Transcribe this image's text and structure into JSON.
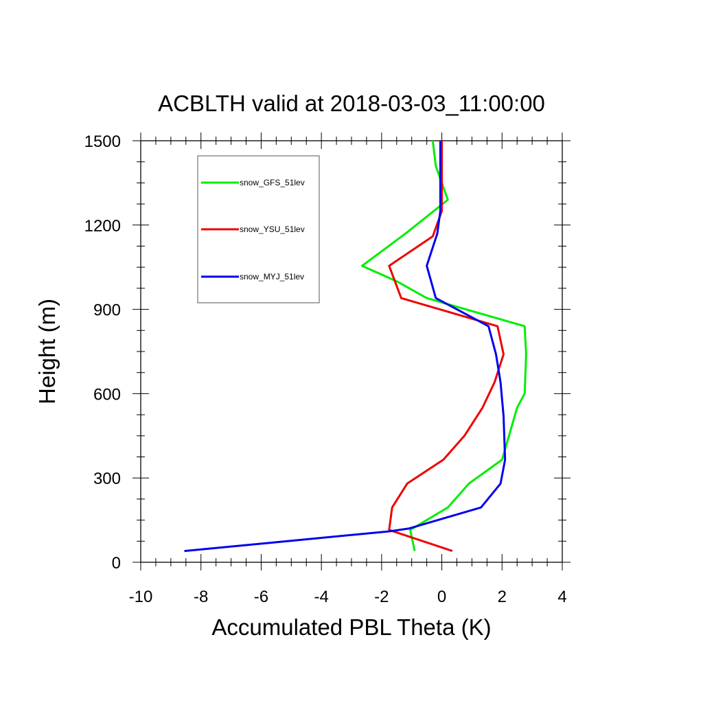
{
  "chart_data": {
    "type": "line",
    "title": "ACBLTH valid at 2018-03-03_11:00:00",
    "xlabel": "Accumulated PBL Theta (K)",
    "ylabel": "Height (m)",
    "xlim": [
      -10,
      4
    ],
    "ylim": [
      0,
      1500
    ],
    "xticks": [
      "-10",
      "-8",
      "-6",
      "-4",
      "-2",
      "0",
      "2",
      "4"
    ],
    "yticks": [
      "0",
      "300",
      "600",
      "900",
      "1200",
      "1500"
    ],
    "legend_position": "top-left",
    "grid": false,
    "series": [
      {
        "name": "snow_GFS_51lev",
        "color": "#00ee00",
        "points": [
          [
            -0.9,
            40
          ],
          [
            -1.05,
            115
          ],
          [
            0.2,
            195
          ],
          [
            0.9,
            280
          ],
          [
            2.0,
            365
          ],
          [
            2.5,
            550
          ],
          [
            2.75,
            600
          ],
          [
            2.8,
            740
          ],
          [
            2.75,
            840
          ],
          [
            -0.5,
            940
          ],
          [
            -1.5,
            1000
          ],
          [
            -2.65,
            1055
          ],
          [
            -1.2,
            1170
          ],
          [
            0.2,
            1290
          ],
          [
            -0.2,
            1410
          ],
          [
            -0.3,
            1500
          ]
        ]
      },
      {
        "name": "snow_YSU_51lev",
        "color": "#ee0000",
        "points": [
          [
            0.35,
            40
          ],
          [
            -1.75,
            115
          ],
          [
            -1.65,
            195
          ],
          [
            -1.15,
            280
          ],
          [
            0.05,
            365
          ],
          [
            0.75,
            450
          ],
          [
            1.35,
            550
          ],
          [
            1.75,
            640
          ],
          [
            2.05,
            740
          ],
          [
            1.85,
            840
          ],
          [
            -1.35,
            940
          ],
          [
            -1.75,
            1055
          ],
          [
            -0.3,
            1160
          ],
          [
            0.0,
            1250
          ],
          [
            0.0,
            1500
          ]
        ]
      },
      {
        "name": "snow_MYJ_51lev",
        "color": "#0000ee",
        "points": [
          [
            -8.55,
            40
          ],
          [
            -1.75,
            110
          ],
          [
            -1.1,
            120
          ],
          [
            1.3,
            195
          ],
          [
            1.95,
            280
          ],
          [
            2.1,
            365
          ],
          [
            2.05,
            520
          ],
          [
            1.95,
            640
          ],
          [
            1.8,
            740
          ],
          [
            1.55,
            840
          ],
          [
            -0.2,
            940
          ],
          [
            -0.5,
            1055
          ],
          [
            -0.15,
            1170
          ],
          [
            -0.05,
            1250
          ],
          [
            -0.05,
            1500
          ]
        ]
      }
    ]
  }
}
